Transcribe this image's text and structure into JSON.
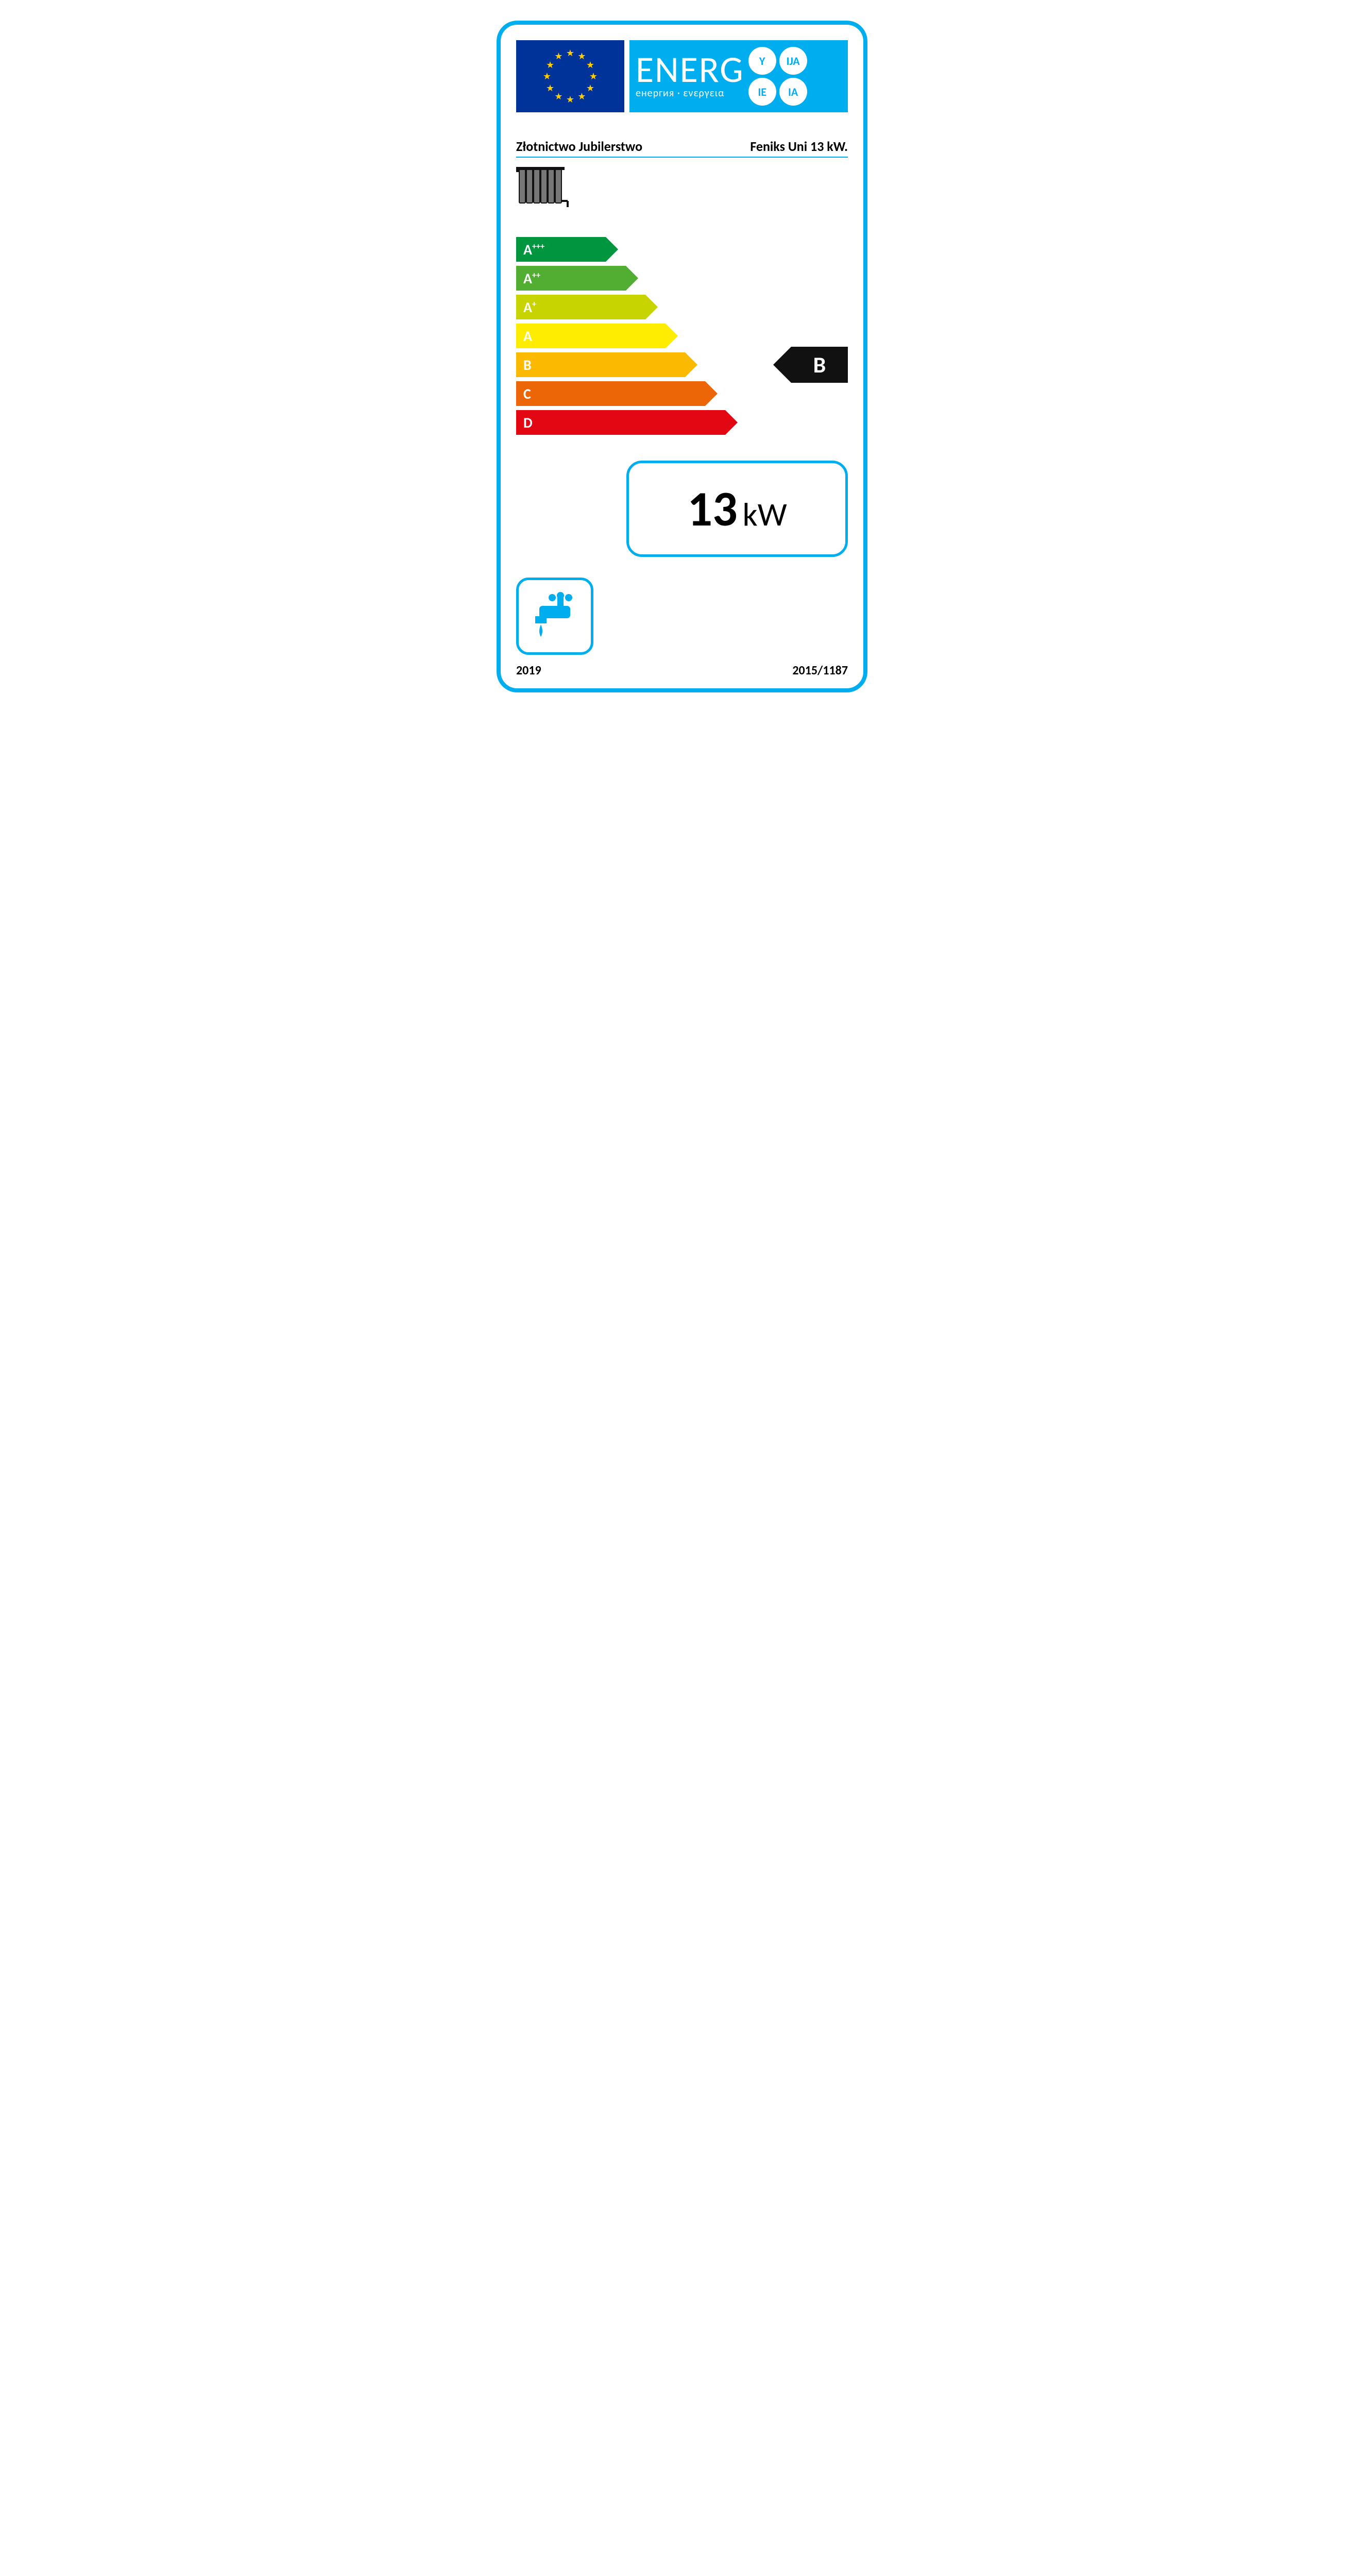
{
  "header": {
    "title": "ENERG",
    "subtitle": "енергия · ενεργεια",
    "suffix_circles": [
      "Y",
      "IJA",
      "IE",
      "IA"
    ],
    "flag_bg": "#003399",
    "flag_star_color": "#ffcc00",
    "energ_bg": "#00aeef"
  },
  "product": {
    "manufacturer": "Złotnictwo Jubilerstwo",
    "model": "Feniks Uni 13 kW."
  },
  "icons": {
    "radiator": "radiator-icon",
    "tap": "tap-icon"
  },
  "classes": {
    "bars": [
      {
        "label": "A",
        "sup": "+++",
        "color": "#009640",
        "width_pct": 27
      },
      {
        "label": "A",
        "sup": "++",
        "color": "#52ae32",
        "width_pct": 33
      },
      {
        "label": "A",
        "sup": "+",
        "color": "#c8d400",
        "width_pct": 39
      },
      {
        "label": "A",
        "sup": "",
        "color": "#ffed00",
        "width_pct": 45
      },
      {
        "label": "B",
        "sup": "",
        "color": "#fbba00",
        "width_pct": 51
      },
      {
        "label": "C",
        "sup": "",
        "color": "#ec6608",
        "width_pct": 57
      },
      {
        "label": "D",
        "sup": "",
        "color": "#e30613",
        "width_pct": 63
      }
    ],
    "rating": "B",
    "rating_index": 4
  },
  "power": {
    "value": "13",
    "unit": "kW"
  },
  "footer": {
    "year": "2019",
    "regulation": "2015/1187"
  },
  "colors": {
    "border": "#00aeef",
    "text": "#111111"
  }
}
